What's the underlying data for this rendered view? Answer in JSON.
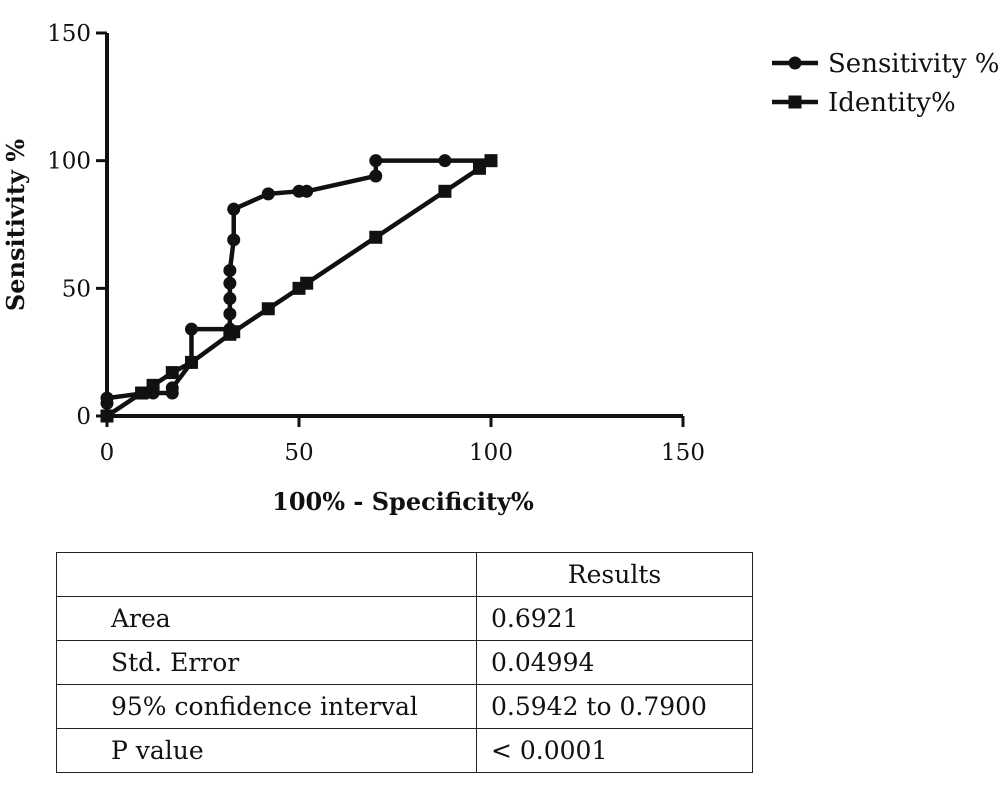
{
  "chart_data": {
    "type": "line",
    "xlabel": "100% - Specificity%",
    "ylabel": "Sensitivity %",
    "xlim": [
      0,
      150
    ],
    "ylim": [
      0,
      150
    ],
    "xticks": [
      0,
      50,
      100,
      150
    ],
    "yticks": [
      0,
      50,
      100,
      150
    ],
    "grid": false,
    "legend_position": "top-right",
    "series": [
      {
        "name": "Sensitivity %",
        "marker": "circle",
        "points": [
          [
            0,
            5
          ],
          [
            0,
            7
          ],
          [
            10,
            9
          ],
          [
            12,
            9
          ],
          [
            17,
            9
          ],
          [
            17,
            11
          ],
          [
            22,
            21
          ],
          [
            22,
            34
          ],
          [
            32,
            34
          ],
          [
            32,
            40
          ],
          [
            32,
            46
          ],
          [
            32,
            52
          ],
          [
            32,
            57
          ],
          [
            33,
            69
          ],
          [
            33,
            81
          ],
          [
            42,
            87
          ],
          [
            50,
            88
          ],
          [
            52,
            88
          ],
          [
            70,
            94
          ],
          [
            70,
            100
          ],
          [
            88,
            100
          ],
          [
            100,
            100
          ]
        ]
      },
      {
        "name": "Identity%",
        "marker": "square",
        "points": [
          [
            0,
            0
          ],
          [
            9,
            9
          ],
          [
            12,
            12
          ],
          [
            17,
            17
          ],
          [
            22,
            21
          ],
          [
            32,
            32
          ],
          [
            33,
            33
          ],
          [
            42,
            42
          ],
          [
            50,
            50
          ],
          [
            52,
            52
          ],
          [
            70,
            70
          ],
          [
            88,
            88
          ],
          [
            97,
            97
          ],
          [
            100,
            100
          ]
        ]
      }
    ]
  },
  "table": {
    "header": [
      "",
      "Results"
    ],
    "rows": [
      [
        "Area",
        "0.6921"
      ],
      [
        "Std. Error",
        "0.04994"
      ],
      [
        "95% confidence interval",
        "0.5942 to 0.7900"
      ],
      [
        "P value",
        "< 0.0001"
      ]
    ]
  }
}
